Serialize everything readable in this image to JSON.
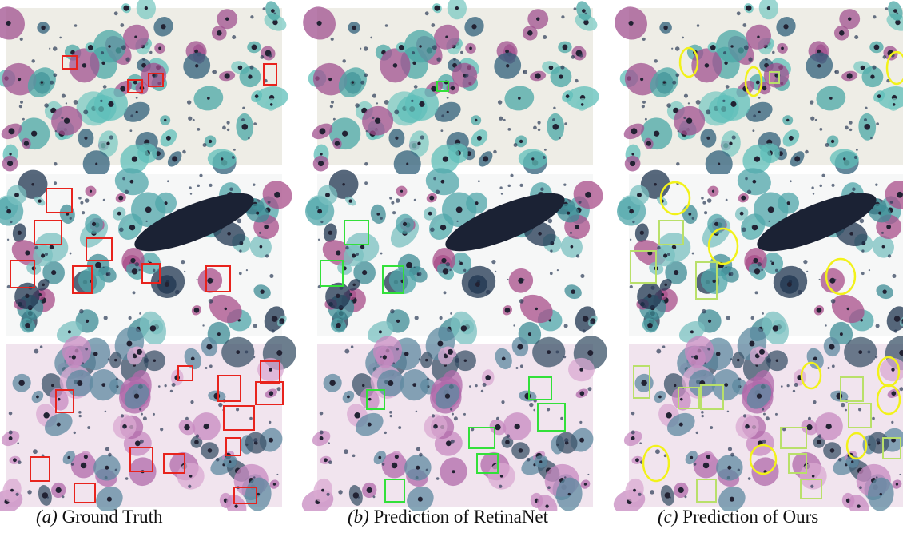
{
  "figure": {
    "captions": [
      {
        "label": "(a)",
        "text": "Ground Truth"
      },
      {
        "label": "(b)",
        "text": "Prediction of RetinaNet"
      },
      {
        "label": "(c)",
        "text": "Prediction of Ours"
      }
    ]
  }
}
